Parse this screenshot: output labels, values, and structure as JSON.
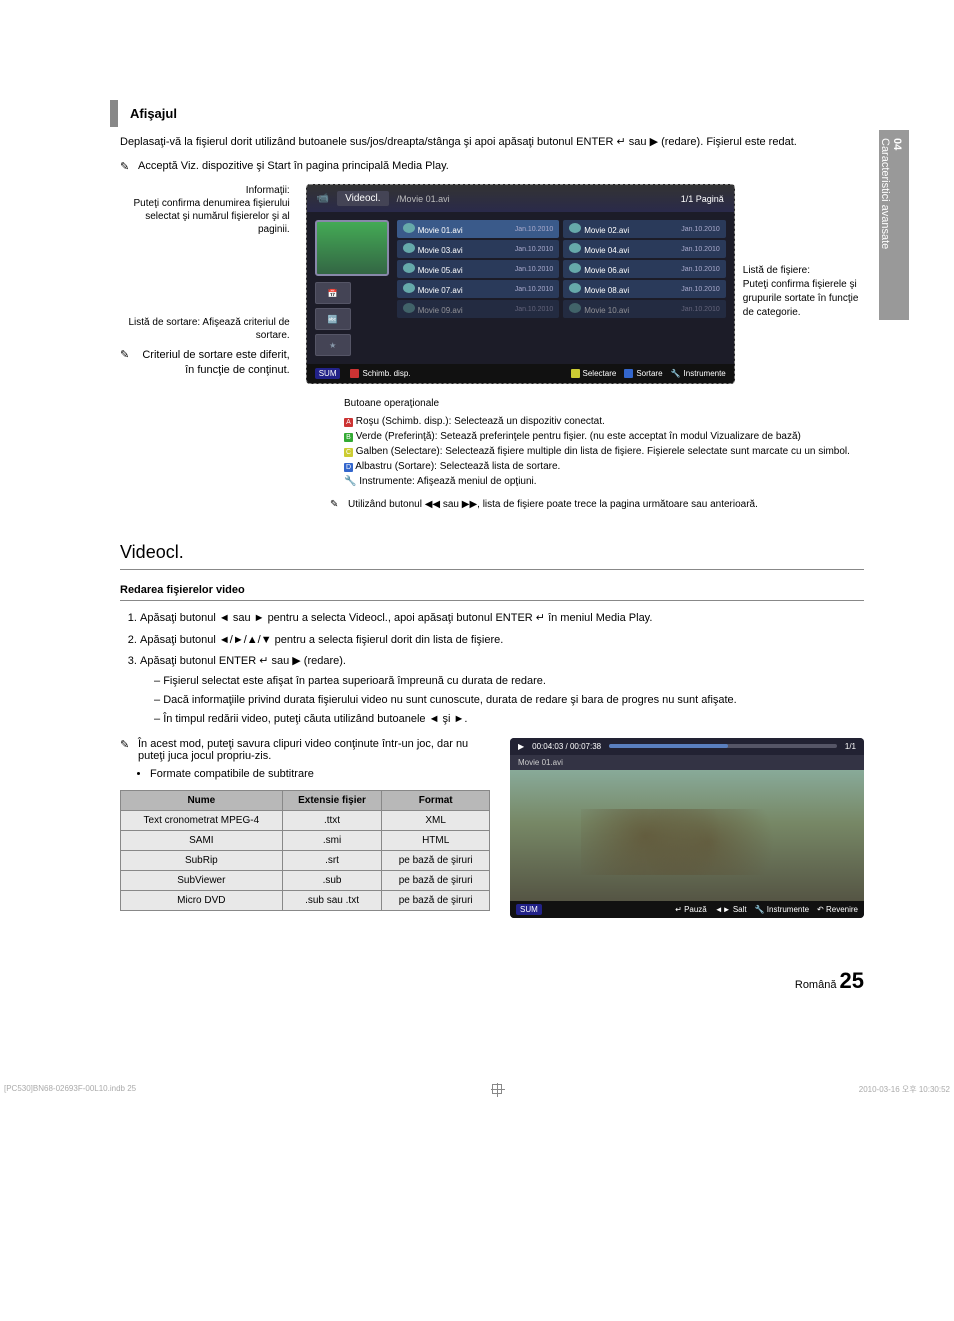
{
  "sideTab": {
    "num": "04",
    "label": "Caracteristici avansate"
  },
  "section1Title": "Afişajul",
  "intro": "Deplasaţi-vă la fişierul dorit utilizând butoanele sus/jos/dreapta/stânga şi apoi apăsaţi butonul ENTER ↵ sau ▶ (redare). Fişierul este redat.",
  "note1": "Acceptă Viz. dispozitive şi Start în pagina principală Media Play.",
  "leftLabels": {
    "info": "Informaţii:\nPuteţi confirma denumirea fişierului selectat şi numărul fişierelor şi al paginii.",
    "sort": "Listă de sortare: Afişează criteriul de sortare.",
    "sortNote": "Criteriul de sortare este diferit, în funcţie de conţinut."
  },
  "rightLabel": "Listă de fişiere:\nPuteţi confirma fişierele şi grupurile sortate în funcţie de categorie.",
  "ss": {
    "title": "Videocl.",
    "path": "/Movie 01.avi",
    "page": "1/1 Pagină",
    "files": [
      [
        "Movie 01.avi",
        "Movie 02.avi"
      ],
      [
        "Movie 03.avi",
        "Movie 04.avi"
      ],
      [
        "Movie 05.avi",
        "Movie 06.avi"
      ],
      [
        "Movie 07.avi",
        "Movie 08.avi"
      ],
      [
        "Movie 09.avi",
        "Movie 10.avi"
      ]
    ],
    "date": "Jan.10.2010",
    "footer": {
      "sum": "SUM",
      "a": "Schimb. disp.",
      "sel": "Selectare",
      "sort": "Sortare",
      "tools": "Instrumente"
    }
  },
  "operational": {
    "title": "Butoane operaţionale",
    "items": [
      "Roşu (Schimb. disp.): Selectează un dispozitiv conectat.",
      "Verde (Preferinţă): Setează preferinţele pentru fişier. (nu este acceptat în modul Vizualizare de bază)",
      "Galben (Selectare): Selectează fişiere multiple din lista de fişiere. Fişierele selectate sunt marcate cu un simbol.",
      "Albastru (Sortare): Selectează lista de sortare.",
      "Instrumente: Afişează meniul de opţiuni."
    ],
    "colors": [
      "#c33",
      "#3a3",
      "#cc3",
      "#36c",
      ""
    ],
    "letters": [
      "A",
      "B",
      "C",
      "D",
      ""
    ],
    "note": "Utilizând butonul ◀◀ sau ▶▶, lista de fişiere poate trece la pagina următoare sau anterioară."
  },
  "videoclTitle": "Videocl.",
  "subhead": "Redarea fişierelor video",
  "steps": [
    "Apăsaţi butonul ◄ sau ► pentru a selecta Videocl., apoi apăsaţi butonul ENTER ↵ în meniul Media Play.",
    "Apăsaţi butonul ◄/►/▲/▼ pentru a selecta fişierul dorit din lista de fişiere.",
    "Apăsaţi butonul ENTER ↵ sau ▶ (redare)."
  ],
  "step3sub": [
    "Fişierul selectat este afişat în partea superioară împreună cu durata de redare.",
    "Dacă informaţiile privind durata fişierului video nu sunt cunoscute, durata de redare şi bara de progres nu sunt afişate.",
    "În timpul redării video, puteţi căuta utilizând butoanele ◄ şi ►."
  ],
  "modeNote": "În acest mod, puteţi savura clipuri video conţinute într-un joc, dar nu puteţi juca jocul propriu-zis.",
  "subtitleBullet": "Formate compatibile de subtitrare",
  "table": {
    "headers": [
      "Nume",
      "Extensie fişier",
      "Format"
    ],
    "rows": [
      [
        "Text cronometrat MPEG-4",
        ".ttxt",
        "XML"
      ],
      [
        "SAMI",
        ".smi",
        "HTML"
      ],
      [
        "SubRip",
        ".srt",
        "pe bază de şiruri"
      ],
      [
        "SubViewer",
        ".sub",
        "pe bază de şiruri"
      ],
      [
        "Micro DVD",
        ".sub sau .txt",
        "pe bază de şiruri"
      ]
    ]
  },
  "player": {
    "time": "00:04:03 / 00:07:38",
    "page": "1/1",
    "name": "Movie 01.avi",
    "sum": "SUM",
    "pause": "Pauză",
    "salt": "Salt",
    "instr": "Instrumente",
    "rev": "Revenire"
  },
  "pageFooter": {
    "lang": "Română",
    "num": "25"
  },
  "docFooter": {
    "left": "[PC530]BN68-02693F-00L10.indb   25",
    "right": "2010-03-16   오후 10:30:52"
  }
}
